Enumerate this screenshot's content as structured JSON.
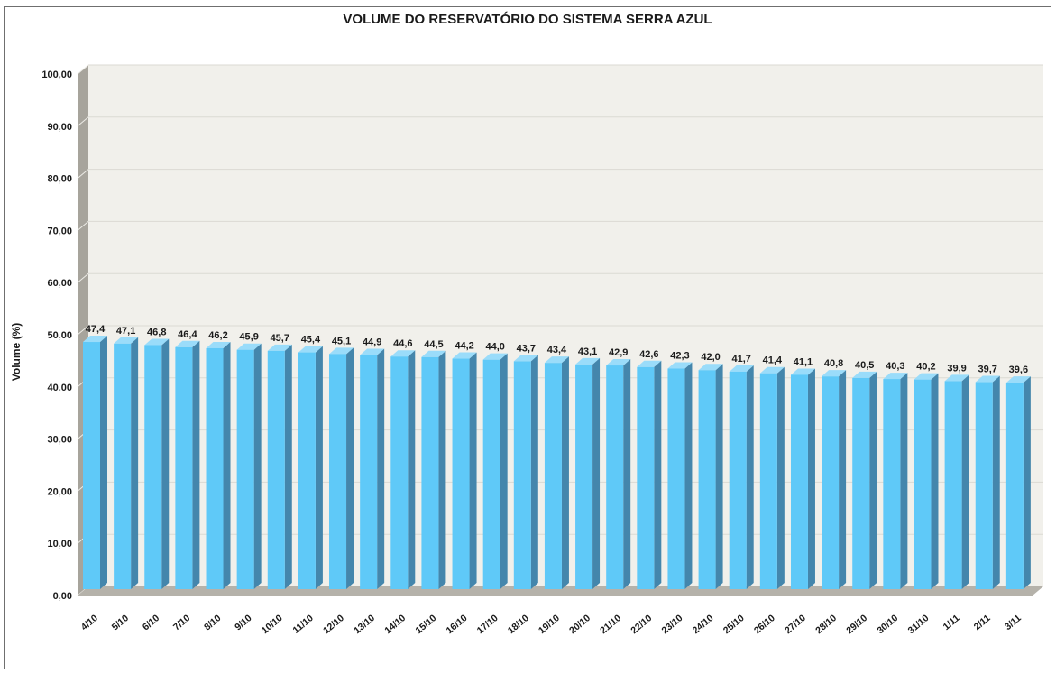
{
  "chart_data": {
    "type": "bar",
    "style": "3d-column",
    "title": "VOLUME DO RESERVATÓRIO DO SISTEMA SERRA AZUL",
    "xlabel": "",
    "ylabel": "Volume (%)",
    "ylim": [
      0,
      100
    ],
    "ytick_step": 10,
    "ytick_labels": [
      "0,00",
      "10,00",
      "20,00",
      "30,00",
      "40,00",
      "50,00",
      "60,00",
      "70,00",
      "80,00",
      "90,00",
      "100,00"
    ],
    "grid": true,
    "legend": "none",
    "categories": [
      "4/10",
      "5/10",
      "6/10",
      "7/10",
      "8/10",
      "9/10",
      "10/10",
      "11/10",
      "12/10",
      "13/10",
      "14/10",
      "15/10",
      "16/10",
      "17/10",
      "18/10",
      "19/10",
      "20/10",
      "21/10",
      "22/10",
      "23/10",
      "24/10",
      "25/10",
      "26/10",
      "27/10",
      "28/10",
      "29/10",
      "30/10",
      "31/10",
      "1/11",
      "2/11",
      "3/11"
    ],
    "values": [
      47.4,
      47.1,
      46.8,
      46.4,
      46.2,
      45.9,
      45.7,
      45.4,
      45.1,
      44.9,
      44.6,
      44.5,
      44.2,
      44.0,
      43.7,
      43.4,
      43.1,
      42.9,
      42.6,
      42.3,
      42.0,
      41.7,
      41.4,
      41.1,
      40.8,
      40.5,
      40.3,
      40.2,
      39.9,
      39.7,
      39.6
    ],
    "value_labels": [
      "47,4",
      "47,1",
      "46,8",
      "46,4",
      "46,2",
      "45,9",
      "45,7",
      "45,4",
      "45,1",
      "44,9",
      "44,6",
      "44,5",
      "44,2",
      "44,0",
      "43,7",
      "43,4",
      "43,1",
      "42,9",
      "42,6",
      "42,3",
      "42,0",
      "41,7",
      "41,4",
      "41,1",
      "40,8",
      "40,5",
      "40,3",
      "40,2",
      "39,9",
      "39,7",
      "39,6"
    ],
    "colors": {
      "plot_bg": "#F1F0EB",
      "gridline": "#DBDAD3",
      "wall": "#A7A49C",
      "wall_tick": "#EDECE7",
      "floor": "#B5B2AA",
      "bar_front": "#5FC9F8",
      "bar_side": "#4486AC",
      "bar_top": "#9ADCFA",
      "text": "#1A1A1A",
      "frame_border": "#6F6F6F"
    }
  }
}
